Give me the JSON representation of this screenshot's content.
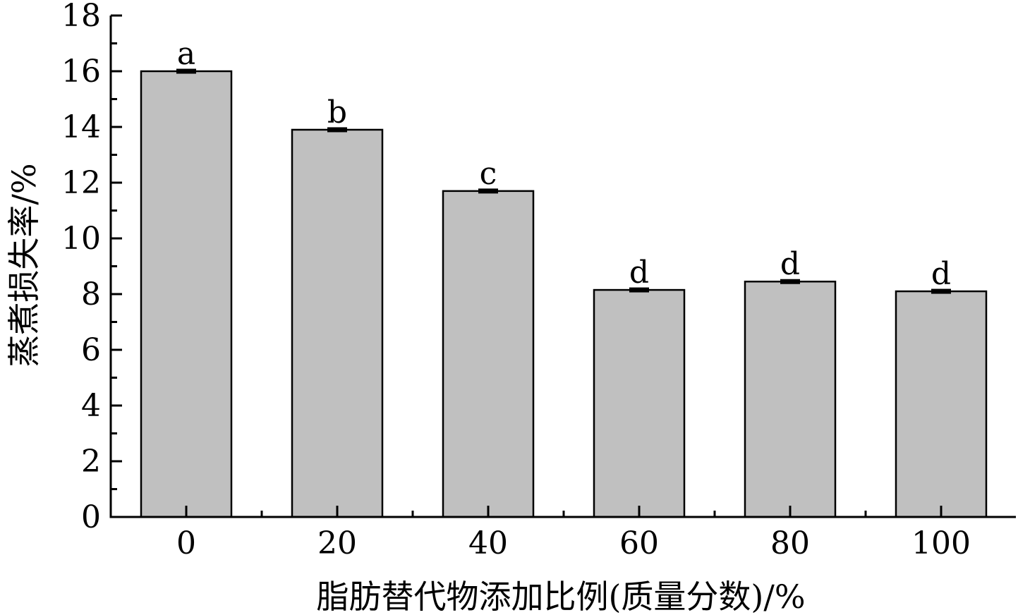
{
  "chart_data": {
    "type": "bar",
    "categories": [
      "0",
      "20",
      "40",
      "60",
      "80",
      "100"
    ],
    "values": [
      16.0,
      13.9,
      11.7,
      8.15,
      8.45,
      8.1
    ],
    "errors": [
      0.08,
      0.08,
      0.08,
      0.08,
      0.08,
      0.08
    ],
    "significance": [
      "a",
      "b",
      "c",
      "d",
      "d",
      "d"
    ],
    "title": "",
    "xlabel": "脂肪替代物添加比例(质量分数)/%",
    "ylabel": "蒸煮损失率/%",
    "ylim": [
      0,
      18
    ],
    "yticks": [
      "0",
      "2",
      "4",
      "6",
      "8",
      "10",
      "12",
      "14",
      "16",
      "18"
    ],
    "grid": false,
    "legend": "none",
    "colors": {
      "bar_fill": "#c0c0c0",
      "bar_stroke": "#000000",
      "axis": "#000000"
    }
  }
}
